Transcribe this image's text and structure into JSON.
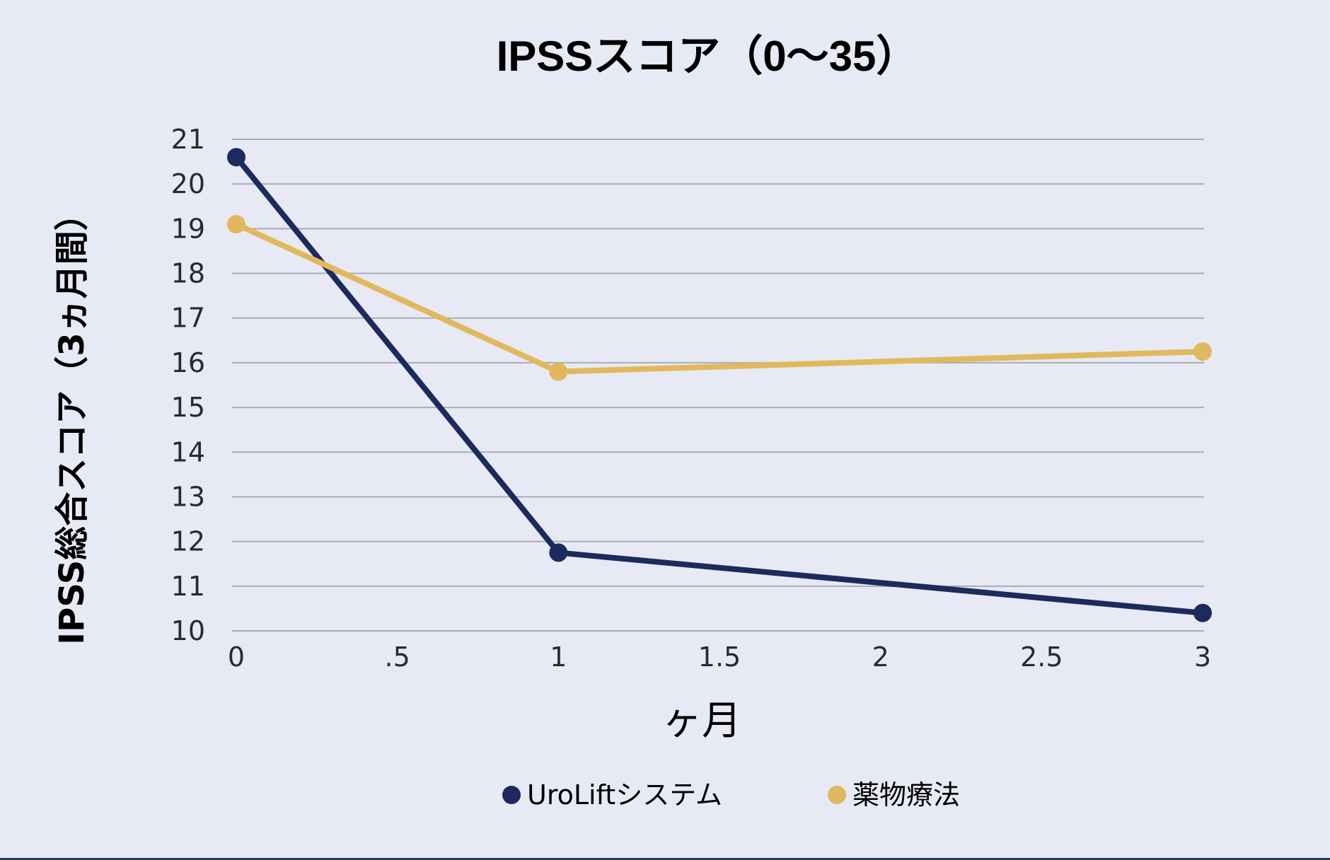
{
  "chart_data": {
    "type": "line",
    "title": "IPSSスコア（0〜35）",
    "xlabel": "ヶ月",
    "ylabel": "IPSS総合スコア（3ヵ月間）",
    "xlim": [
      0,
      3
    ],
    "ylim": [
      10,
      21
    ],
    "x_ticks": [
      {
        "value": 0,
        "label": "0"
      },
      {
        "value": 0.5,
        "label": ".5"
      },
      {
        "value": 1,
        "label": "1"
      },
      {
        "value": 1.5,
        "label": "1.5"
      },
      {
        "value": 2,
        "label": "2"
      },
      {
        "value": 2.5,
        "label": "2.5"
      },
      {
        "value": 3,
        "label": "3"
      }
    ],
    "y_ticks": [
      {
        "value": 10,
        "label": "10"
      },
      {
        "value": 11,
        "label": "11"
      },
      {
        "value": 12,
        "label": "12"
      },
      {
        "value": 13,
        "label": "13"
      },
      {
        "value": 14,
        "label": "14"
      },
      {
        "value": 15,
        "label": "15"
      },
      {
        "value": 16,
        "label": "16"
      },
      {
        "value": 17,
        "label": "17"
      },
      {
        "value": 18,
        "label": "18"
      },
      {
        "value": 19,
        "label": "19"
      },
      {
        "value": 20,
        "label": "20"
      },
      {
        "value": 21,
        "label": "21"
      }
    ],
    "grid": true,
    "legend_position": "bottom-center",
    "series": [
      {
        "name": "UroLiftシステム",
        "color": "#1c2a5e",
        "points": [
          {
            "x": 0,
            "y": 20.6
          },
          {
            "x": 1,
            "y": 11.75
          },
          {
            "x": 3,
            "y": 10.4
          }
        ]
      },
      {
        "name": "薬物療法",
        "color": "#e1b85e",
        "points": [
          {
            "x": 0,
            "y": 19.1
          },
          {
            "x": 1,
            "y": 15.8
          },
          {
            "x": 3,
            "y": 16.25
          }
        ]
      }
    ]
  }
}
